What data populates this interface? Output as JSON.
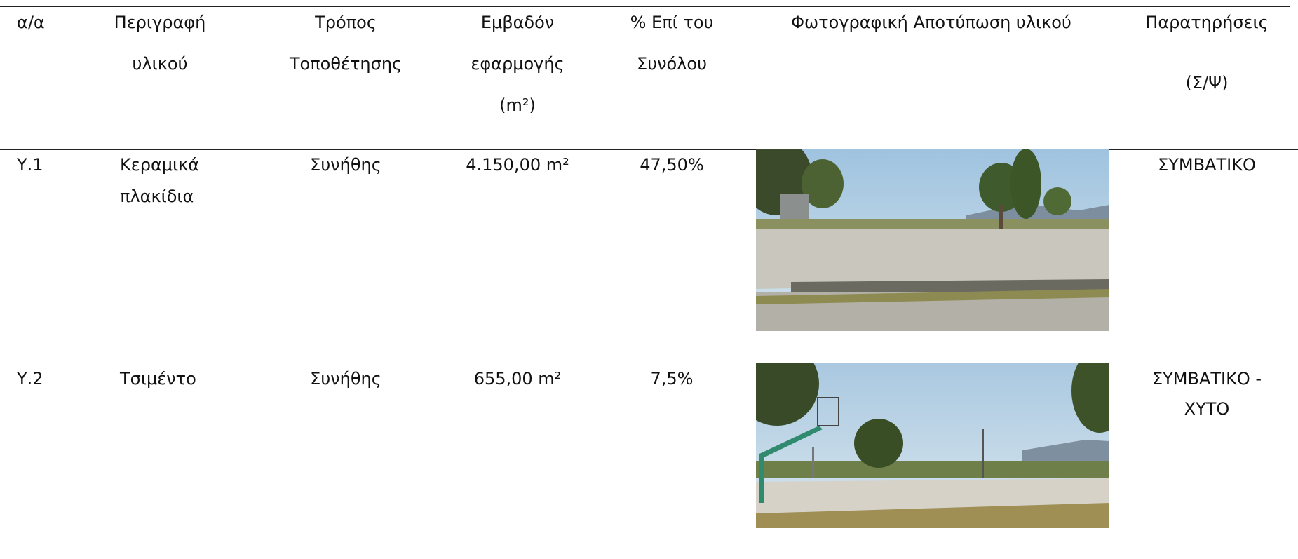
{
  "table": {
    "header": [
      [
        "α/α"
      ],
      [
        "Περιγραφή",
        "υλικού"
      ],
      [
        "Τρόπος",
        "Τοποθέτησης"
      ],
      [
        "Εμβαδόν",
        "εφαρμογής",
        "(m²)"
      ],
      [
        "% Επί του",
        "Συνόλου"
      ],
      [
        "Φωτογραφική Αποτύπωση υλικού"
      ],
      [
        "Παρατηρήσεις",
        "(Σ/Ψ)"
      ]
    ],
    "rows": [
      {
        "id": "Υ.1",
        "material": [
          "Κεραμικά",
          "πλακίδια"
        ],
        "method": "Συνήθης",
        "area": "4.150,00 m²",
        "percent": "47,50%",
        "remarks": [
          "ΣΥΜΒΑΤΙΚΟ"
        ]
      },
      {
        "id": "Υ.2",
        "material": [
          "Τσιμέντο"
        ],
        "method": "Συνήθης",
        "area": "655,00 m²",
        "percent": "7,5%",
        "remarks": [
          "ΣΥΜΒΑΤΙΚΟ -",
          "ΧΥΤΟ"
        ]
      }
    ]
  }
}
